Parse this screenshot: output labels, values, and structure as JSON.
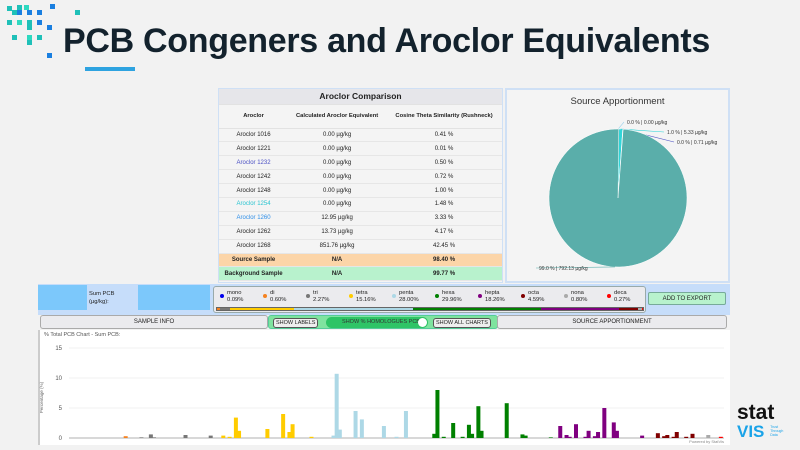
{
  "header": {
    "title": "PCB Congeners and Aroclor Equivalents"
  },
  "aroclor_table": {
    "caption": "Aroclor Comparison",
    "columns": [
      "Aroclor",
      "Calculated Aroclor Equivalent",
      "Cosine Theta Similarity (Rushneck)"
    ],
    "rows": [
      {
        "name": "Aroclor 1016",
        "equiv": "0.00 µg/kg",
        "sim": "0.41 %",
        "color": "#222222"
      },
      {
        "name": "Aroclor 1221",
        "equiv": "0.00 µg/kg",
        "sim": "0.01 %",
        "color": "#222222"
      },
      {
        "name": "Aroclor 1232",
        "equiv": "0.00 µg/kg",
        "sim": "0.50 %",
        "color": "#4a4fc4"
      },
      {
        "name": "Aroclor 1242",
        "equiv": "0.00 µg/kg",
        "sim": "0.72 %",
        "color": "#222222"
      },
      {
        "name": "Aroclor 1248",
        "equiv": "0.00 µg/kg",
        "sim": "1.00 %",
        "color": "#222222"
      },
      {
        "name": "Aroclor 1254",
        "equiv": "0.00 µg/kg",
        "sim": "1.48 %",
        "color": "#29c4d0"
      },
      {
        "name": "Aroclor 1260",
        "equiv": "12.95 µg/kg",
        "sim": "3.33 %",
        "color": "#2f8fe8"
      },
      {
        "name": "Aroclor 1262",
        "equiv": "13.73 µg/kg",
        "sim": "4.17 %",
        "color": "#222222"
      },
      {
        "name": "Aroclor 1268",
        "equiv": "851.76 µg/kg",
        "sim": "42.45 %",
        "color": "#222222"
      }
    ],
    "source": {
      "name": "Source Sample",
      "equiv": "N/A",
      "sim": "98.40 %"
    },
    "background": {
      "name": "Background Sample",
      "equiv": "N/A",
      "sim": "99.77 %"
    }
  },
  "source_apportionment": {
    "title": "Source Apportionment",
    "slices": [
      {
        "label": "0.0 % | 0.00 µg/kg",
        "percent": 0.0,
        "color": "#9fd3ec"
      },
      {
        "label": "1.0 % | 5.33 µg/kg",
        "percent": 1.0,
        "color": "#30d5d8"
      },
      {
        "label": "0.0 % | 0.71 µg/kg",
        "percent": 0.0,
        "color": "#4a4fc4"
      },
      {
        "label": "99.0 % | 792.13 µg/kg",
        "percent": 99.0,
        "color": "#5aaeaa"
      }
    ]
  },
  "controls": {
    "sum_label": "Sum PCB (µg/kg):",
    "add_export": "ADD TO EXPORT",
    "homologues": [
      {
        "name": "mono",
        "pct": "0.09%",
        "value": 0.09,
        "color": "#0000ee"
      },
      {
        "name": "di",
        "pct": "0.60%",
        "value": 0.6,
        "color": "#f58220"
      },
      {
        "name": "tri",
        "pct": "2.27%",
        "value": 2.27,
        "color": "#777777"
      },
      {
        "name": "tetra",
        "pct": "15.16%",
        "value": 15.16,
        "color": "#ffcc00"
      },
      {
        "name": "penta",
        "pct": "28.00%",
        "value": 28.0,
        "color": "#add8e6"
      },
      {
        "name": "hexa",
        "pct": "29.96%",
        "value": 29.96,
        "color": "#008000"
      },
      {
        "name": "hepta",
        "pct": "18.26%",
        "value": 18.26,
        "color": "#800080"
      },
      {
        "name": "octa",
        "pct": "4.59%",
        "value": 4.59,
        "color": "#800000"
      },
      {
        "name": "nona",
        "pct": "0.80%",
        "value": 0.8,
        "color": "#aaaaaa"
      },
      {
        "name": "deca",
        "pct": "0.27%",
        "value": 0.27,
        "color": "#ff0000"
      }
    ]
  },
  "tabs": {
    "sample_info": "SAMPLE INFO",
    "show_labels": "SHOW LABELS",
    "show_homologues": "SHOW % HOMOLOGUES PCB",
    "show_homologues_on": true,
    "show_all": "SHOW ALL CHARTS",
    "source_apportionment": "SOURCE APPORTIONMENT"
  },
  "chart_data": {
    "type": "bar",
    "title": "% Total PCB Chart - Sum PCB:",
    "ylabel": "Percentage (%)",
    "ylim": [
      0,
      15
    ],
    "yticks": [
      "0",
      "5",
      "10",
      "15"
    ],
    "xlim": [
      1,
      209
    ],
    "grid": true,
    "bars": [
      [
        19,
        0.3,
        "di"
      ],
      [
        24,
        0.1,
        "tri"
      ],
      [
        27,
        0.6,
        "tri"
      ],
      [
        28,
        0.1,
        "tri"
      ],
      [
        38,
        0.5,
        "tri"
      ],
      [
        46,
        0.4,
        "tri"
      ],
      [
        50,
        0.4,
        "tetra"
      ],
      [
        52,
        0.2,
        "tetra"
      ],
      [
        54,
        3.4,
        "tetra"
      ],
      [
        55,
        1.2,
        "tetra"
      ],
      [
        64,
        1.5,
        "tetra"
      ],
      [
        69,
        4.0,
        "tetra"
      ],
      [
        71,
        1.0,
        "tetra"
      ],
      [
        72,
        2.3,
        "tetra"
      ],
      [
        78,
        0.2,
        "tetra"
      ],
      [
        85,
        0.4,
        "penta"
      ],
      [
        86,
        10.7,
        "penta"
      ],
      [
        87,
        1.4,
        "penta"
      ],
      [
        92,
        4.5,
        "penta"
      ],
      [
        94,
        3.1,
        "penta"
      ],
      [
        101,
        2.0,
        "penta"
      ],
      [
        105,
        0.2,
        "penta"
      ],
      [
        108,
        4.5,
        "penta"
      ],
      [
        117,
        0.7,
        "hexa"
      ],
      [
        118,
        8.0,
        "hexa"
      ],
      [
        120,
        0.2,
        "hexa"
      ],
      [
        123,
        2.5,
        "hexa"
      ],
      [
        126,
        0.2,
        "hexa"
      ],
      [
        128,
        2.2,
        "hexa"
      ],
      [
        129,
        0.7,
        "hexa"
      ],
      [
        131,
        5.3,
        "hexa"
      ],
      [
        132,
        1.2,
        "hexa"
      ],
      [
        140,
        5.8,
        "hexa"
      ],
      [
        145,
        0.6,
        "hexa"
      ],
      [
        146,
        0.4,
        "hexa"
      ],
      [
        154,
        0.1,
        "hexa"
      ],
      [
        157,
        2.0,
        "hepta"
      ],
      [
        159,
        0.5,
        "hepta"
      ],
      [
        160,
        0.2,
        "hepta"
      ],
      [
        162,
        2.3,
        "hepta"
      ],
      [
        165,
        0.2,
        "hepta"
      ],
      [
        166,
        1.2,
        "hepta"
      ],
      [
        168,
        0.3,
        "hepta"
      ],
      [
        169,
        1.0,
        "hepta"
      ],
      [
        171,
        5.0,
        "hepta"
      ],
      [
        174,
        2.6,
        "hepta"
      ],
      [
        175,
        1.2,
        "hepta"
      ],
      [
        183,
        0.4,
        "hepta"
      ],
      [
        188,
        0.8,
        "octa"
      ],
      [
        190,
        0.3,
        "octa"
      ],
      [
        191,
        0.5,
        "octa"
      ],
      [
        193,
        0.2,
        "octa"
      ],
      [
        194,
        1.0,
        "octa"
      ],
      [
        197,
        0.2,
        "octa"
      ],
      [
        199,
        0.7,
        "octa"
      ],
      [
        204,
        0.5,
        "nona"
      ],
      [
        208,
        0.2,
        "deca"
      ]
    ]
  },
  "footer": {
    "powered": "Powered by StatVis"
  },
  "logo": {
    "line1": "stat",
    "line2": "VIS",
    "tagline": "Trust Through Data"
  }
}
